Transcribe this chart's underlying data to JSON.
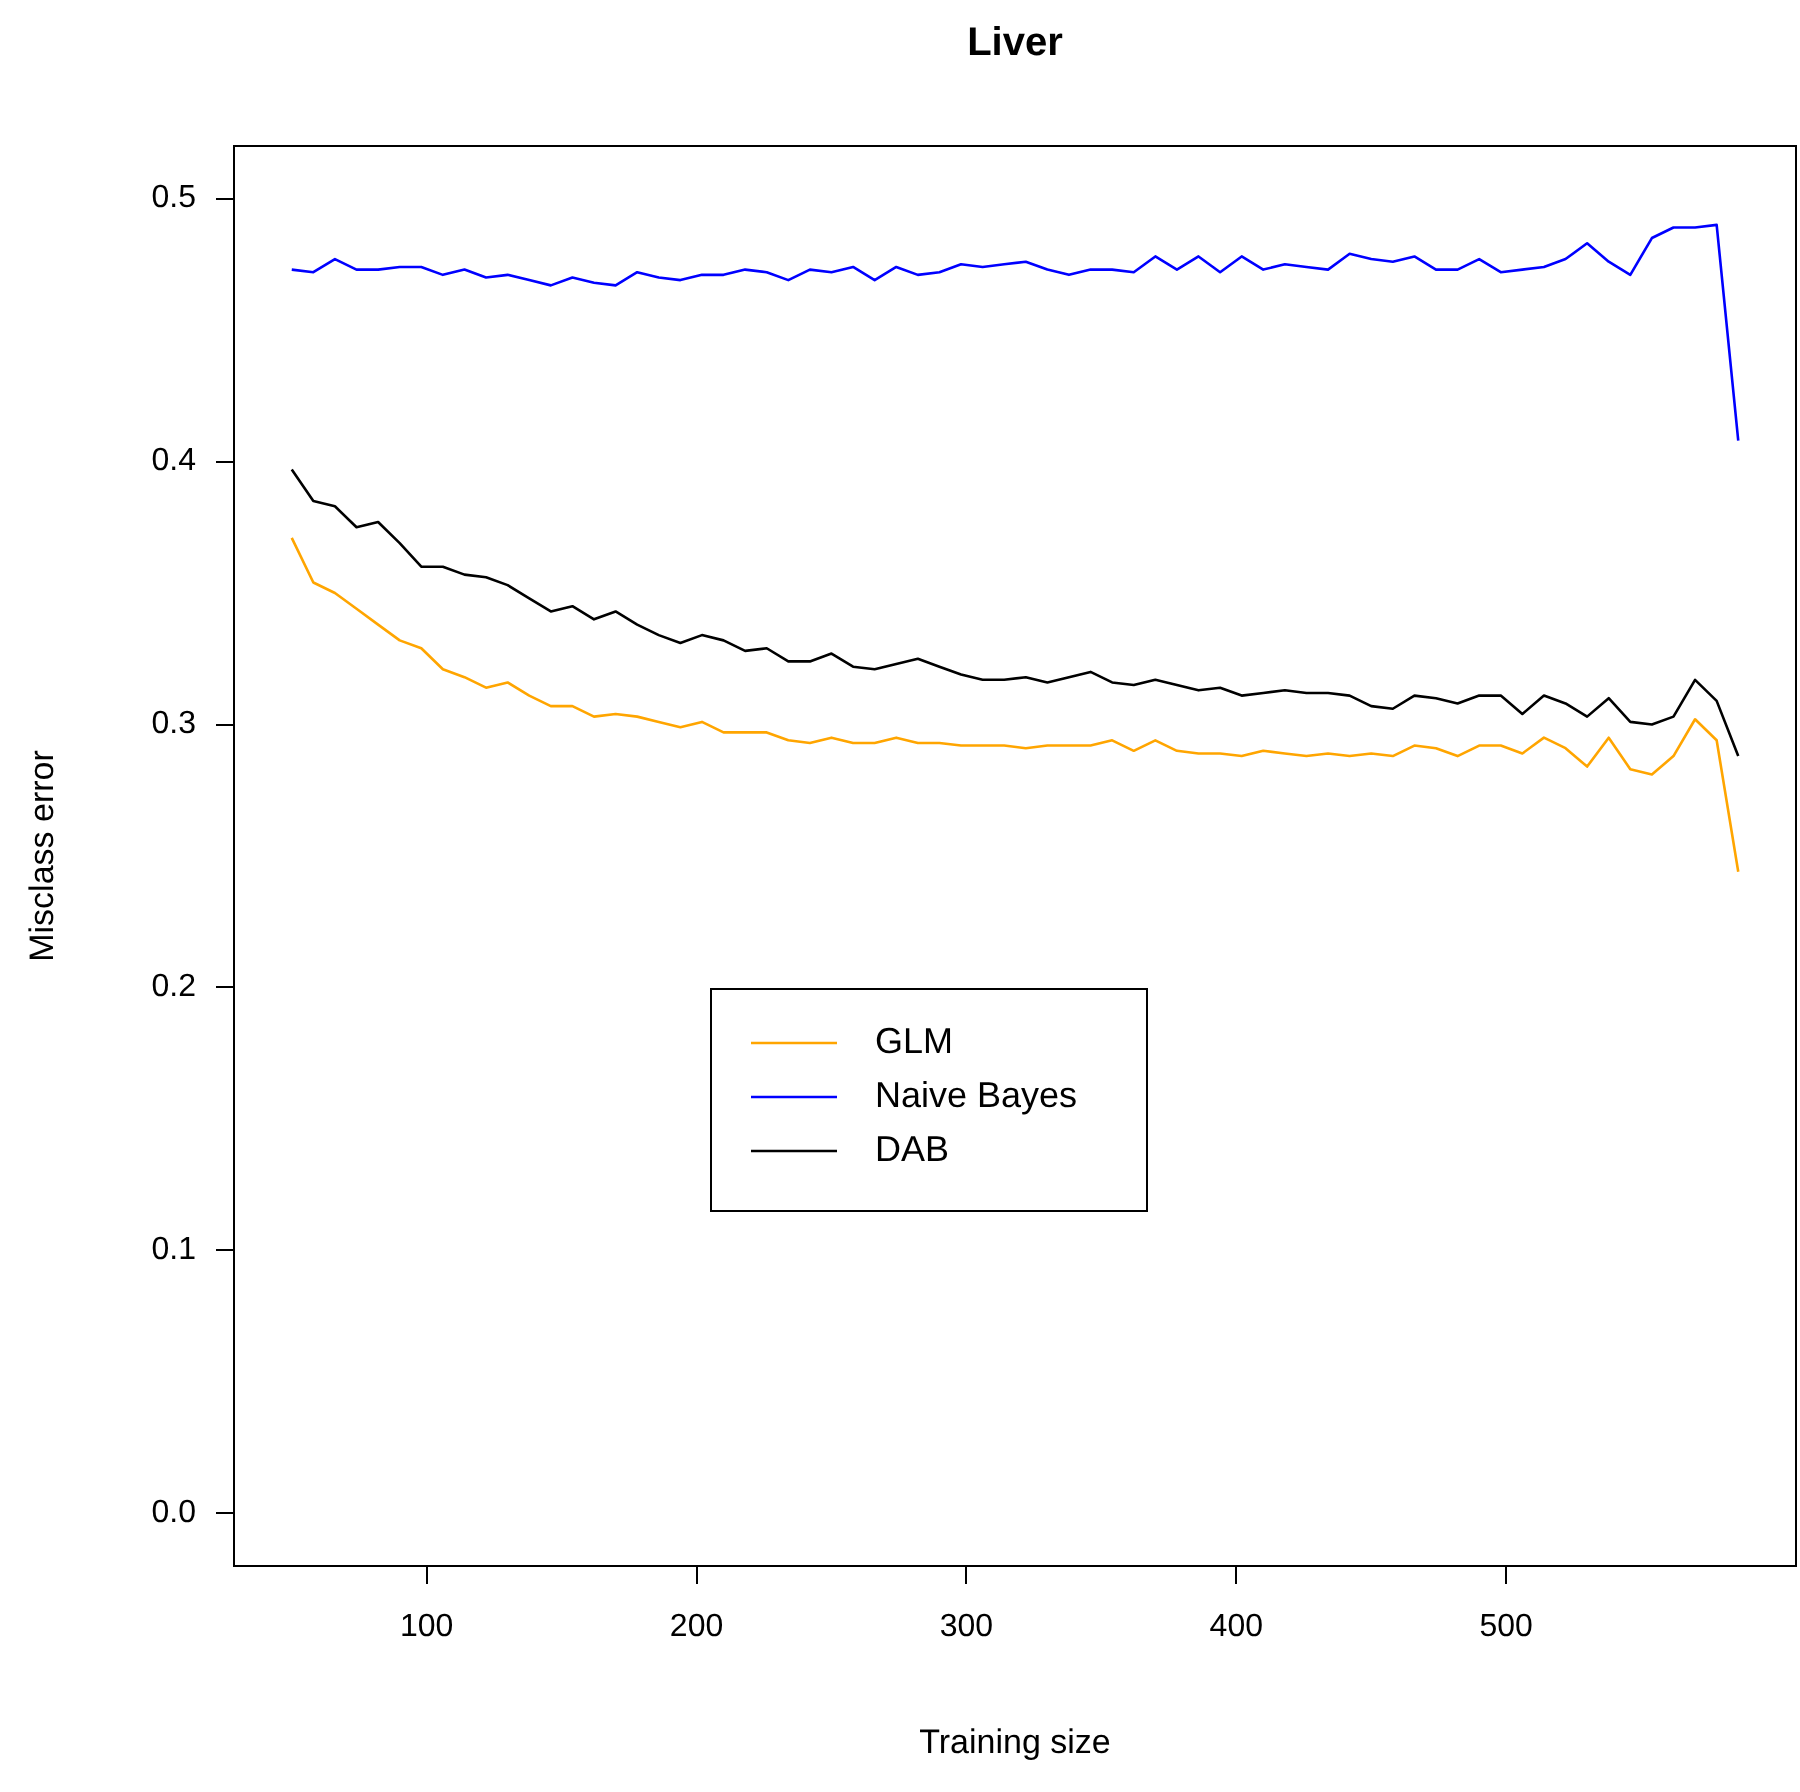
{
  "chart_data": {
    "type": "line",
    "title": "Liver",
    "xlabel": "Training size",
    "ylabel": "Misclass error",
    "x": [
      50,
      58,
      66,
      74,
      82,
      90,
      98,
      106,
      114,
      122,
      130,
      138,
      146,
      154,
      162,
      170,
      178,
      186,
      194,
      202,
      210,
      218,
      226,
      234,
      242,
      250,
      258,
      266,
      274,
      282,
      290,
      298,
      306,
      314,
      322,
      330,
      338,
      346,
      354,
      362,
      370,
      378,
      386,
      394,
      402,
      410,
      418,
      426,
      434,
      442,
      450,
      458,
      466,
      474,
      482,
      490,
      498,
      506,
      514,
      522,
      530,
      538,
      546,
      554,
      562,
      570,
      578,
      586
    ],
    "xlim": [
      28.6,
      607.4
    ],
    "xticks": [
      100,
      200,
      300,
      400,
      500
    ],
    "ylim": [
      -0.02,
      0.52
    ],
    "yticks": [
      {
        "value": 0,
        "label": "0.0"
      },
      0.1,
      0.2,
      0.3,
      0.4,
      0.5
    ],
    "series": [
      {
        "name": "GLM",
        "color": "#ffa500",
        "values": [
          0.371,
          0.354,
          0.35,
          0.344,
          0.338,
          0.332,
          0.329,
          0.321,
          0.318,
          0.314,
          0.316,
          0.311,
          0.307,
          0.307,
          0.303,
          0.304,
          0.303,
          0.301,
          0.299,
          0.301,
          0.297,
          0.297,
          0.297,
          0.294,
          0.293,
          0.295,
          0.293,
          0.293,
          0.295,
          0.293,
          0.293,
          0.292,
          0.292,
          0.292,
          0.291,
          0.292,
          0.292,
          0.292,
          0.294,
          0.29,
          0.294,
          0.29,
          0.289,
          0.289,
          0.288,
          0.29,
          0.289,
          0.288,
          0.289,
          0.288,
          0.289,
          0.288,
          0.292,
          0.291,
          0.288,
          0.292,
          0.292,
          0.289,
          0.295,
          0.291,
          0.284,
          0.295,
          0.283,
          0.281,
          0.288,
          0.302,
          0.294,
          0.244
        ]
      },
      {
        "name": "Naive Bayes",
        "color": "#0000ff",
        "values": [
          0.473,
          0.472,
          0.477,
          0.473,
          0.473,
          0.474,
          0.474,
          0.471,
          0.473,
          0.47,
          0.471,
          0.469,
          0.467,
          0.47,
          0.468,
          0.467,
          0.472,
          0.47,
          0.469,
          0.471,
          0.471,
          0.473,
          0.472,
          0.469,
          0.473,
          0.472,
          0.474,
          0.469,
          0.474,
          0.471,
          0.472,
          0.475,
          0.474,
          0.475,
          0.476,
          0.473,
          0.471,
          0.473,
          0.473,
          0.472,
          0.478,
          0.473,
          0.478,
          0.472,
          0.478,
          0.473,
          0.475,
          0.474,
          0.473,
          0.479,
          0.477,
          0.476,
          0.478,
          0.473,
          0.473,
          0.477,
          0.472,
          0.473,
          0.474,
          0.477,
          0.483,
          0.476,
          0.471,
          0.485,
          0.489,
          0.489,
          0.49,
          0.408
        ]
      },
      {
        "name": "DAB",
        "color": "#000000",
        "values": [
          0.397,
          0.385,
          0.383,
          0.375,
          0.377,
          0.369,
          0.36,
          0.36,
          0.357,
          0.356,
          0.353,
          0.348,
          0.343,
          0.345,
          0.34,
          0.343,
          0.338,
          0.334,
          0.331,
          0.334,
          0.332,
          0.328,
          0.329,
          0.324,
          0.324,
          0.327,
          0.322,
          0.321,
          0.323,
          0.325,
          0.322,
          0.319,
          0.317,
          0.317,
          0.318,
          0.316,
          0.318,
          0.32,
          0.316,
          0.315,
          0.317,
          0.315,
          0.313,
          0.314,
          0.311,
          0.312,
          0.313,
          0.312,
          0.312,
          0.311,
          0.307,
          0.306,
          0.311,
          0.31,
          0.308,
          0.311,
          0.311,
          0.304,
          0.311,
          0.308,
          0.303,
          0.31,
          0.301,
          0.3,
          0.303,
          0.317,
          0.309,
          0.288
        ]
      }
    ],
    "legend": "center",
    "line_style": "solid",
    "marker": "none"
  }
}
